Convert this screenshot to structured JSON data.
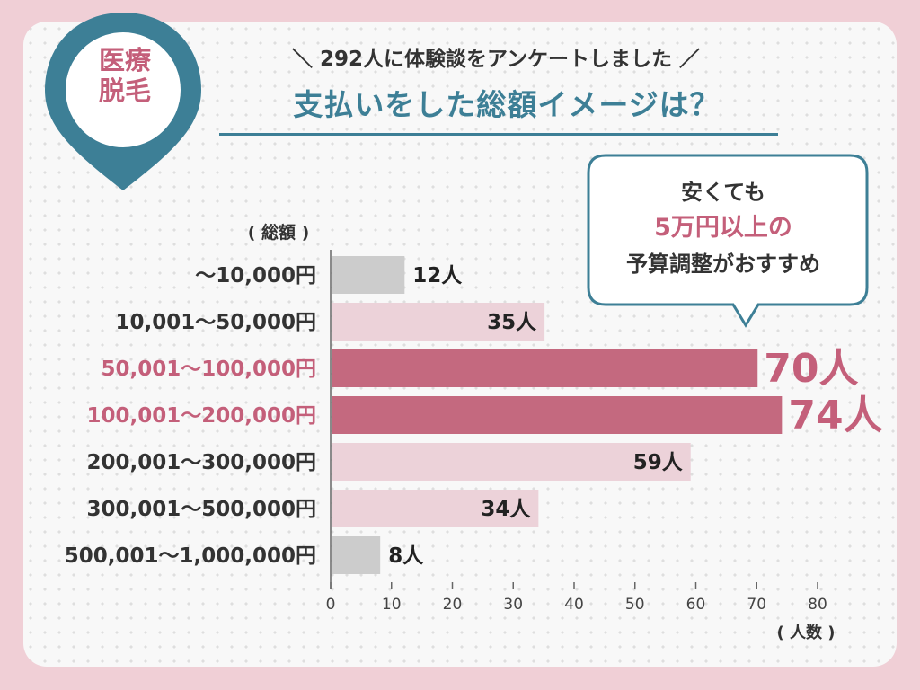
{
  "badge": {
    "line1": "医療",
    "line2": "脱毛"
  },
  "subtitle": "＼ 292人に体験談をアンケートしました ／",
  "title": "支払いをした総額イメージは？",
  "callout": {
    "line1": "安くても",
    "line2": "5万円以上の",
    "line3": "予算調整がおすすめ"
  },
  "colors": {
    "accent_teal": "#3d7f96",
    "accent_pink": "#c45f7a",
    "bar_highlight": "#c4697f",
    "bar_light": "#ecd2d9",
    "bar_gray": "#cccccc"
  },
  "chart_data": {
    "type": "bar",
    "orientation": "horizontal",
    "category_header": "( 総額 )",
    "value_label": "( 人数 )",
    "categories": [
      "～10,000円",
      "10,001～50,000円",
      "50,001～100,000円",
      "100,001～200,000円",
      "200,001～300,000円",
      "300,001～500,000円",
      "500,001～1,000,000円"
    ],
    "values": [
      12,
      35,
      70,
      74,
      59,
      34,
      8
    ],
    "value_suffix": "人",
    "highlight": [
      false,
      false,
      true,
      true,
      false,
      false,
      false
    ],
    "bar_colors": [
      "#cccccc",
      "#ecd2d9",
      "#c4697f",
      "#c4697f",
      "#ecd2d9",
      "#ecd2d9",
      "#cccccc"
    ],
    "xlim": [
      0,
      80
    ],
    "xticks": [
      0,
      10,
      20,
      30,
      40,
      50,
      60,
      70,
      80
    ],
    "grid": true
  }
}
